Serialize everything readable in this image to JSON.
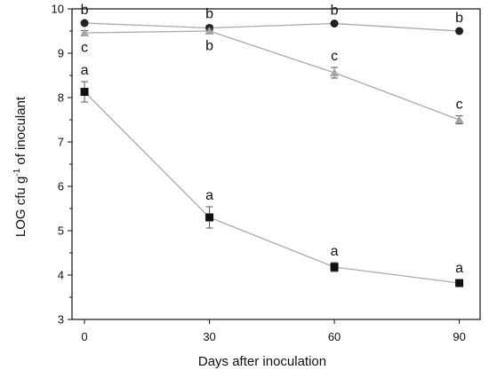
{
  "chart_data": {
    "type": "line",
    "title": "",
    "xlabel": "Days after inoculation",
    "ylabel": {
      "prefix": "LOG cfu g",
      "superscript": "-1",
      "suffix": " of inoculant"
    },
    "x": [
      0,
      30,
      60,
      90
    ],
    "xlim": [
      -3,
      95
    ],
    "ylim": [
      3,
      10
    ],
    "xticks": [
      "0",
      "30",
      "60",
      "90"
    ],
    "yticks": [
      "3",
      "4",
      "5",
      "6",
      "7",
      "8",
      "9",
      "10"
    ],
    "grid": false,
    "legend": "none",
    "series": [
      {
        "marker": "circle",
        "color": "#222222",
        "line_color": "#aaaaaa",
        "values": [
          9.68,
          9.57,
          9.67,
          9.5
        ],
        "errors": [
          0.04,
          0.06,
          0.04,
          0.04
        ],
        "letters": [
          "b",
          "b",
          "b",
          "b"
        ],
        "letter_position": [
          "above",
          "above",
          "above",
          "above"
        ]
      },
      {
        "marker": "triangle",
        "color": "#a6a6a6",
        "line_color": "#aaaaaa",
        "values": [
          9.46,
          9.5,
          8.56,
          7.5
        ],
        "errors": [
          0.05,
          0.05,
          0.12,
          0.09
        ],
        "letters": [
          "c",
          "b",
          "c",
          "c"
        ],
        "letter_position": [
          "below",
          "below",
          "above",
          "above"
        ]
      },
      {
        "marker": "square",
        "color": "#111111",
        "line_color": "#aaaaaa",
        "values": [
          8.13,
          5.3,
          4.18,
          3.82
        ],
        "errors": [
          0.23,
          0.24,
          0.1,
          0.08
        ],
        "letters": [
          "a",
          "a",
          "a",
          "a"
        ],
        "letter_position": [
          "above",
          "above",
          "above",
          "above"
        ]
      }
    ]
  }
}
